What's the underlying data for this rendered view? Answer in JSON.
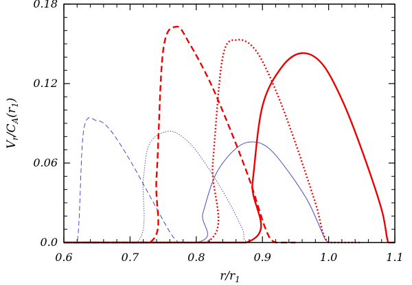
{
  "chart_data": {
    "type": "line",
    "title": "",
    "xlabel": "r/r",
    "xlabel_sub": "1",
    "ylabel": "V",
    "ylabel_sub": "r",
    "ylabel_rest": "/C",
    "ylabel_sub2": "A",
    "ylabel_tail": "(r",
    "ylabel_sub3": "1",
    "ylabel_end": ")",
    "xlim": [
      0.6,
      1.1
    ],
    "ylim": [
      0.0,
      0.18
    ],
    "xticks": [
      0.6,
      0.7,
      0.8,
      0.9,
      1.0,
      1.1
    ],
    "xtick_labels": [
      "0.6",
      "0.7",
      "0.8",
      "0.9",
      "1.0",
      "1.1"
    ],
    "yticks": [
      0.0,
      0.06,
      0.12,
      0.18
    ],
    "ytick_labels": [
      "0.0",
      "0.06",
      "0.12",
      "0.18"
    ],
    "grid": false,
    "series": [
      {
        "color": "#3333cc",
        "style": "dashed",
        "weight": "thin",
        "x": [
          0.6,
          0.62,
          0.63,
          0.65,
          0.67,
          0.7,
          0.73,
          0.76,
          0.773
        ],
        "y": [
          0.0,
          0.0,
          0.085,
          0.092,
          0.085,
          0.062,
          0.035,
          0.008,
          0.0
        ]
      },
      {
        "color": "#3333cc",
        "style": "dotted",
        "weight": "thin",
        "x": [
          0.6,
          0.71,
          0.72,
          0.73,
          0.76,
          0.79,
          0.82,
          0.85,
          0.87,
          0.88,
          0.95
        ],
        "y": [
          0.0,
          0.0,
          0.048,
          0.075,
          0.084,
          0.075,
          0.055,
          0.03,
          0.01,
          0.0,
          0.0
        ]
      },
      {
        "color": "#3333cc",
        "style": "solid",
        "weight": "thin",
        "x": [
          0.6,
          0.8,
          0.81,
          0.83,
          0.86,
          0.885,
          0.91,
          0.94,
          0.97,
          0.995,
          1.0
        ],
        "y": [
          0.0,
          0.0,
          0.022,
          0.052,
          0.071,
          0.076,
          0.071,
          0.053,
          0.03,
          0.002,
          0.0
        ]
      },
      {
        "color": "#ee0000",
        "style": "dashed",
        "weight": "thick",
        "x": [
          0.6,
          0.73,
          0.74,
          0.75,
          0.77,
          0.79,
          0.82,
          0.85,
          0.88,
          0.905,
          0.92,
          0.95
        ],
        "y": [
          0.0,
          0.0,
          0.05,
          0.145,
          0.163,
          0.15,
          0.122,
          0.087,
          0.048,
          0.01,
          0.0,
          0.0
        ]
      },
      {
        "color": "#ee0000",
        "style": "dotted",
        "weight": "thick",
        "x": [
          0.6,
          0.815,
          0.825,
          0.84,
          0.862,
          0.89,
          0.92,
          0.95,
          0.98,
          1.0,
          1.05
        ],
        "y": [
          0.0,
          0.0,
          0.06,
          0.14,
          0.153,
          0.145,
          0.115,
          0.075,
          0.03,
          0.0,
          0.0
        ]
      },
      {
        "color": "#ee0000",
        "style": "solid",
        "weight": "thick",
        "x": [
          0.6,
          0.875,
          0.885,
          0.9,
          0.93,
          0.96,
          0.99,
          1.02,
          1.05,
          1.08,
          1.09,
          1.1
        ],
        "y": [
          0.0,
          0.0,
          0.045,
          0.103,
          0.133,
          0.143,
          0.135,
          0.108,
          0.07,
          0.025,
          0.0,
          0.0
        ]
      }
    ]
  }
}
